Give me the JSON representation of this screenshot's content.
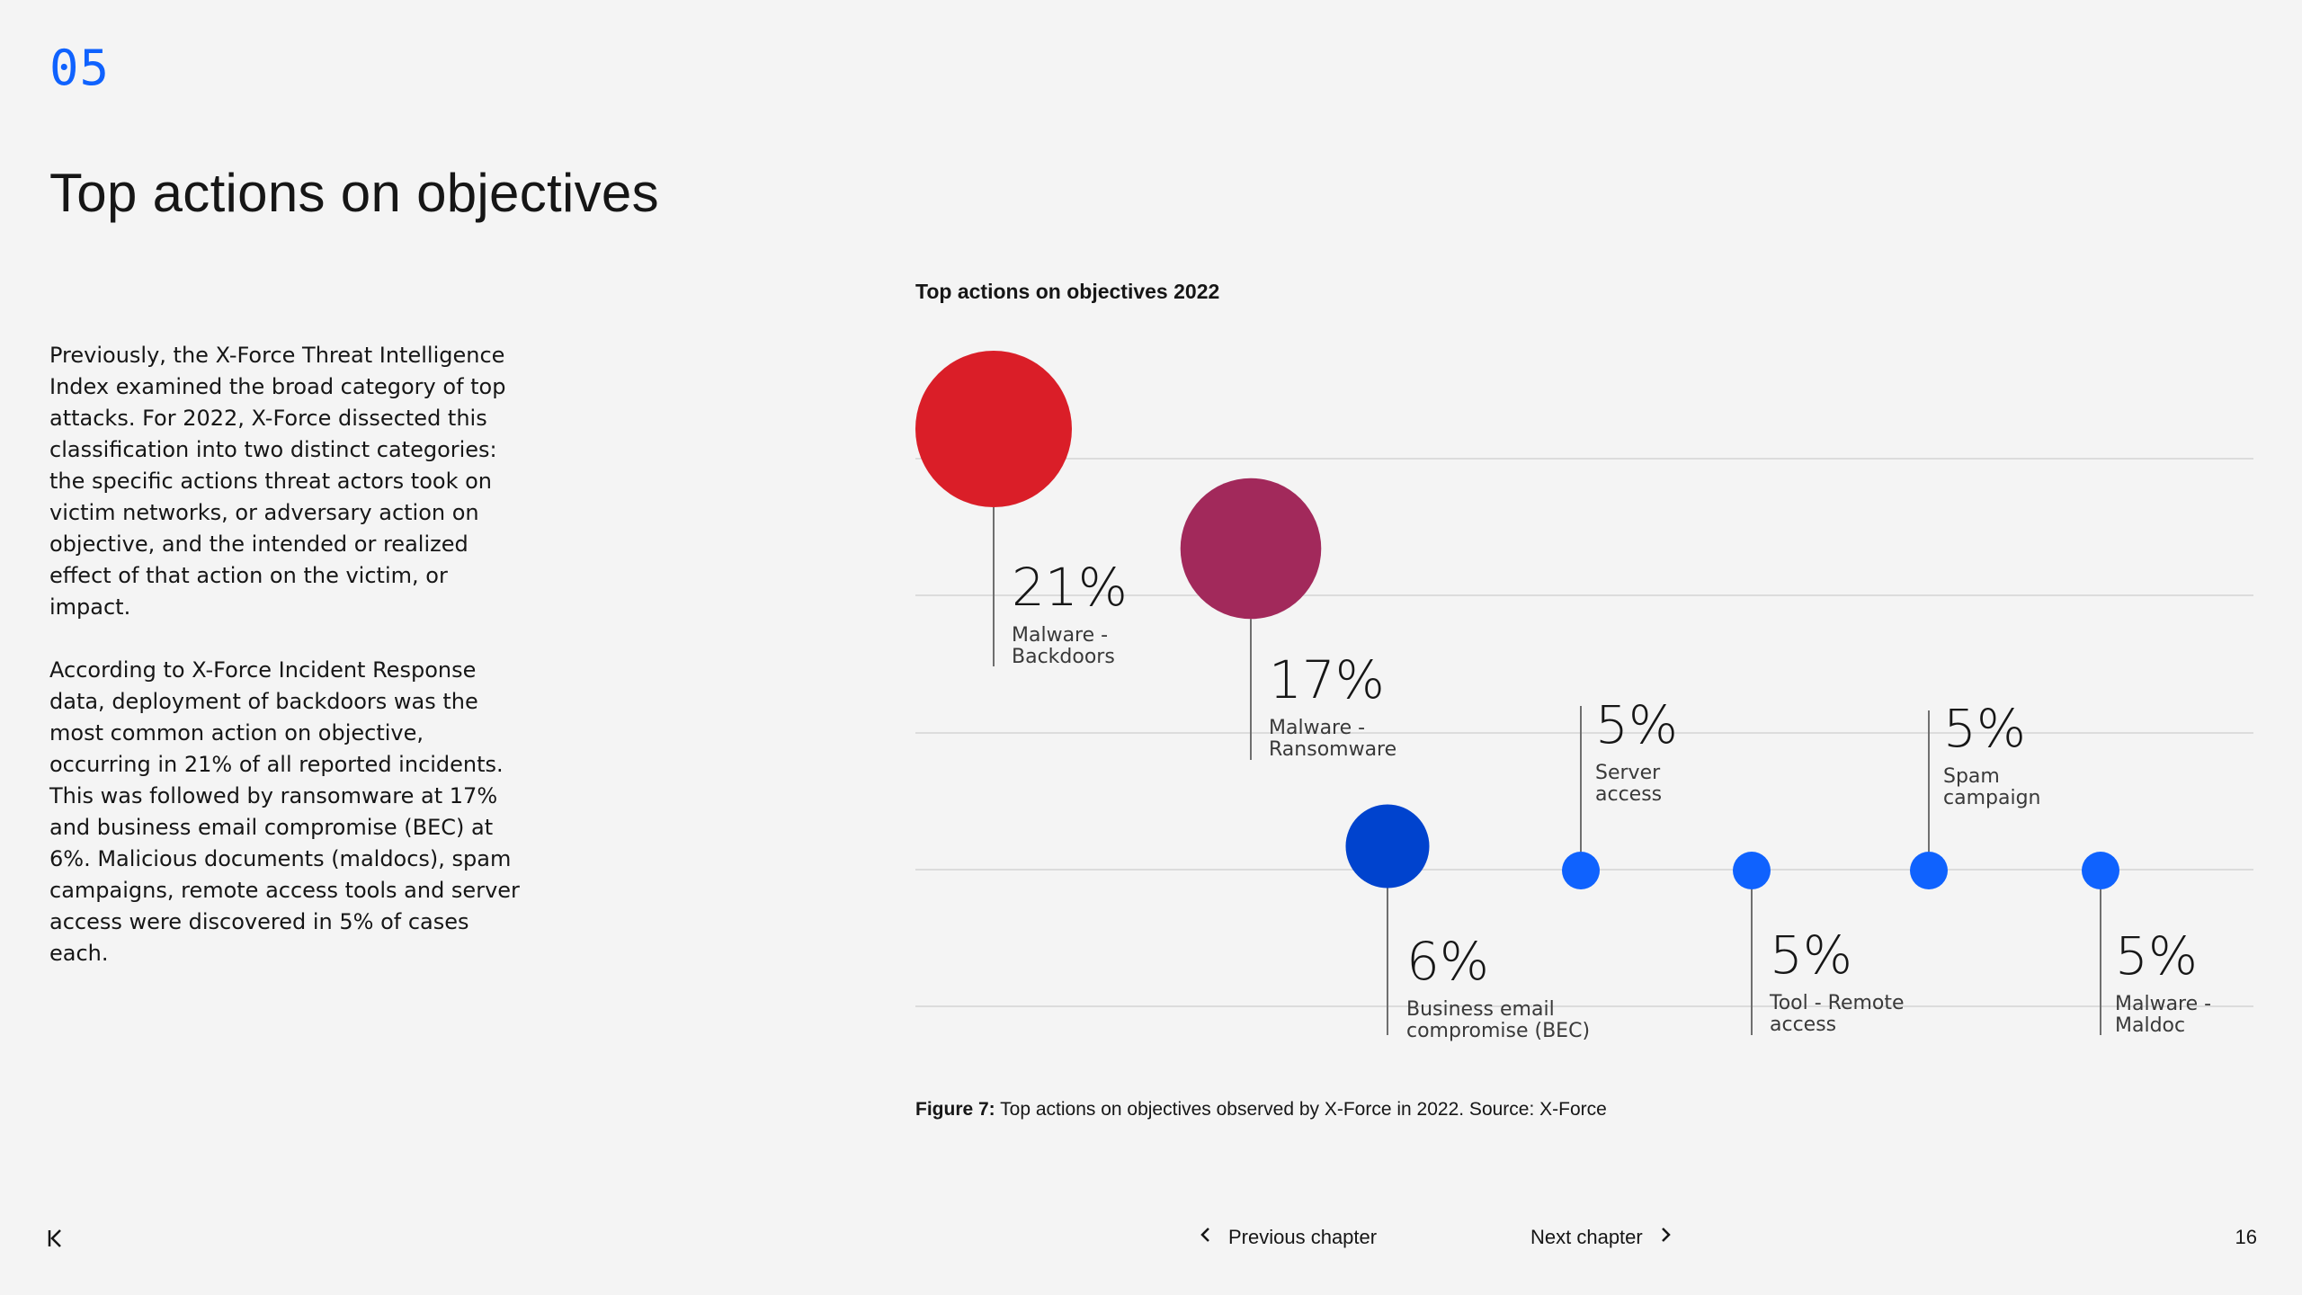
{
  "chapter": {
    "number": "05"
  },
  "page": {
    "title": "Top actions on objectives",
    "number": "16"
  },
  "body": {
    "paragraphs": [
      "Previously, the X-Force Threat Intelligence Index examined the broad category of top attacks. For 2022, X-Force dissected this classification into two distinct categories: the specific actions threat actors took on victim networks, or adversary action on objective, and the intended or realized effect of that action on the victim, or impact.",
      "According to X-Force Incident Response data, deployment of backdoors was the most common action on objective, occurring in 21% of all reported incidents. This was followed by ransomware at 17% and business email compromise (BEC) at 6%. Malicious documents (maldocs), spam campaigns, remote access tools and server access were discovered in 5% of cases each."
    ]
  },
  "caption": {
    "prefix": "Figure 7:",
    "text": " Top actions on objectives observed by X-Force in 2022. Source: X-Force"
  },
  "nav": {
    "first_icon": "first-page-icon",
    "prev_label": "Previous chapter",
    "next_label": "Next chapter"
  },
  "colors": {
    "accent": "#0f62fe",
    "red": "#da1e28",
    "magenta": "#a2295b",
    "dark_blue": "#0043ce",
    "blue": "#0f62fe",
    "grid": "#dcdcdc"
  },
  "chart_data": {
    "type": "bubble",
    "title": "Top actions on objectives 2022",
    "unit": "%",
    "ylim": [
      0,
      25
    ],
    "gridlines": true,
    "items": [
      {
        "label": [
          "Malware -",
          "Backdoors"
        ],
        "value": 21,
        "display": "21%",
        "color": "#da1e28",
        "label_position": "below"
      },
      {
        "label": [
          "Malware -",
          "Ransomware"
        ],
        "value": 17,
        "display": "17%",
        "color": "#a2295b",
        "label_position": "below"
      },
      {
        "label": [
          "Business email",
          "compromise (BEC)"
        ],
        "value": 6,
        "display": "6%",
        "color": "#0043ce",
        "label_position": "below"
      },
      {
        "label": [
          "Server",
          "access"
        ],
        "value": 5,
        "display": "5%",
        "color": "#0f62fe",
        "label_position": "above"
      },
      {
        "label": [
          "Tool - Remote",
          "access"
        ],
        "value": 5,
        "display": "5%",
        "color": "#0f62fe",
        "label_position": "below"
      },
      {
        "label": [
          "Spam",
          "campaign"
        ],
        "value": 5,
        "display": "5%",
        "color": "#0f62fe",
        "label_position": "above"
      },
      {
        "label": [
          "Malware -",
          "Maldoc"
        ],
        "value": 5,
        "display": "5%",
        "color": "#0f62fe",
        "label_position": "below"
      }
    ]
  }
}
